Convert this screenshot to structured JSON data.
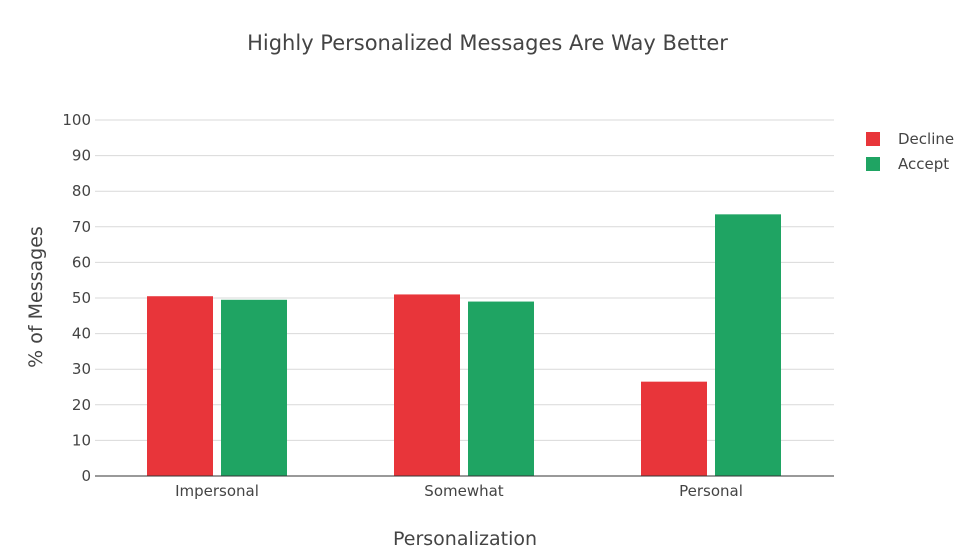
{
  "colors": {
    "decline": "#e8353a",
    "accept": "#1fa463",
    "grid": "#d9d9d9",
    "axis": "#333333",
    "text": "#444444"
  },
  "chart_data": {
    "type": "bar",
    "title": "Highly Personalized Messages Are Way Better",
    "xlabel": "Personalization",
    "ylabel": "% of Messages",
    "categories": [
      "Impersonal",
      "Somewhat",
      "Personal"
    ],
    "series": [
      {
        "name": "Decline",
        "color": "#e8353a",
        "values": [
          50.5,
          51,
          26.5
        ]
      },
      {
        "name": "Accept",
        "color": "#1fa463",
        "values": [
          49.5,
          49,
          73.5
        ]
      }
    ],
    "ylim": [
      0,
      100
    ],
    "yticks": [
      0,
      10,
      20,
      30,
      40,
      50,
      60,
      70,
      80,
      90,
      100
    ],
    "grid": true,
    "legend_position": "top-right"
  }
}
